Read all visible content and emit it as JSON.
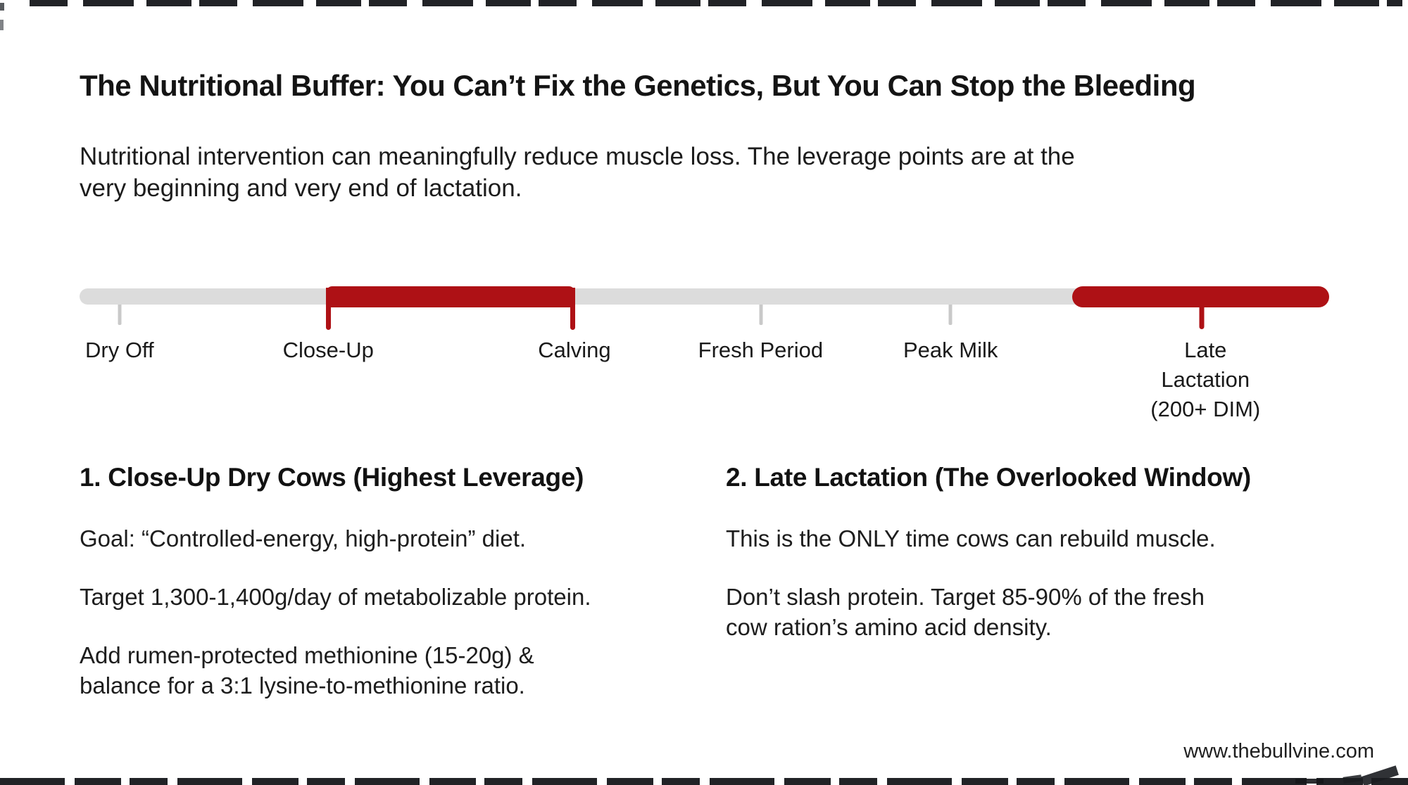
{
  "header": {
    "title": "The Nutritional Buffer: You Can’t Fix the Genetics, But You Can Stop the Bleeding",
    "subtitle": "Nutritional intervention can meaningfully reduce muscle loss. The leverage points are at the\nvery beginning and very end of lactation."
  },
  "timeline": {
    "bar_color": "#dcdcdc",
    "highlight_color": "#ae1115",
    "stages": [
      {
        "label": "Dry Off",
        "highlighted": false
      },
      {
        "label": "Close-Up",
        "highlighted": true
      },
      {
        "label": "Calving",
        "highlighted": true
      },
      {
        "label": "Fresh Period",
        "highlighted": false
      },
      {
        "label": "Peak Milk",
        "highlighted": false
      },
      {
        "label": "Late Lactation\n(200+ DIM)",
        "highlighted": true
      }
    ],
    "highlighted_ranges": [
      {
        "from": "Close-Up",
        "to": "Calving"
      },
      {
        "from": "Late Lactation (200+ DIM)",
        "to": "end"
      }
    ]
  },
  "sections": [
    {
      "heading": "1. Close-Up Dry Cows (Highest Leverage)",
      "paragraphs": [
        "Goal: “Controlled-energy, high-protein” diet.",
        "Target 1,300-1,400g/day of metabolizable protein.",
        "Add rumen-protected methionine (15-20g) &\nbalance for a 3:1 lysine-to-methionine ratio."
      ]
    },
    {
      "heading": "2. Late Lactation (The Overlooked Window)",
      "paragraphs": [
        "This is the ONLY time cows can rebuild muscle.",
        "Don’t slash protein. Target 85-90% of the fresh\ncow ration’s amino acid density."
      ]
    }
  ],
  "footer": {
    "url": "www.thebullvine.com"
  }
}
